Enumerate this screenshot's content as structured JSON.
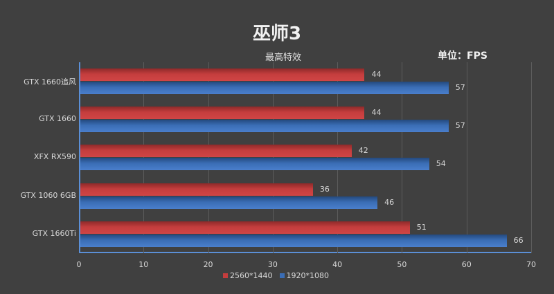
{
  "chart_data": {
    "type": "bar",
    "orientation": "horizontal",
    "title": "巫师3",
    "subtitle": "最高特效",
    "unit_label": "单位：FPS",
    "categories": [
      "GTX 1660追风",
      "GTX 1660",
      "XFX RX590",
      "GTX 1060 6GB",
      "GTX 1660Ti"
    ],
    "series": [
      {
        "name": "2560*1440",
        "color": "#c43d3d",
        "values": [
          44,
          44,
          42,
          36,
          51
        ]
      },
      {
        "name": "1920*1080",
        "color": "#3a6db5",
        "values": [
          57,
          57,
          54,
          46,
          66
        ]
      }
    ],
    "xlabel": "",
    "ylabel": "",
    "xlim": [
      0,
      70
    ],
    "xticks": [
      "0",
      "10",
      "20",
      "30",
      "40",
      "50",
      "60",
      "70"
    ],
    "grid": true,
    "legend_position": "bottom"
  }
}
